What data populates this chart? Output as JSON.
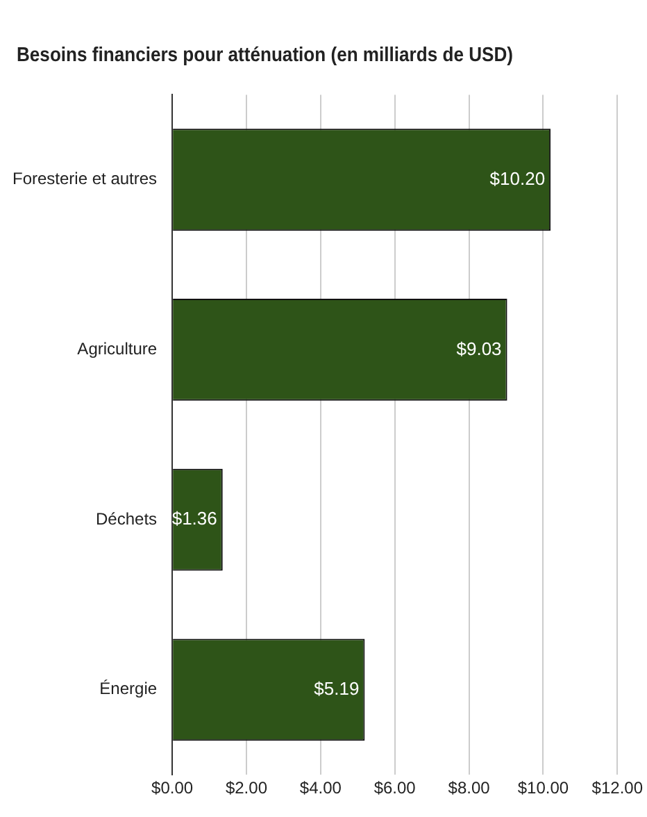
{
  "chart_data": {
    "type": "bar",
    "orientation": "horizontal",
    "title": "Besoins financiers pour atténuation (en milliards de USD)",
    "categories": [
      "Foresterie et autres",
      "Agriculture",
      "Déchets",
      "Énergie"
    ],
    "values": [
      10.2,
      9.03,
      1.36,
      5.19
    ],
    "value_labels": [
      "$10.20",
      "$9.03",
      "$1.36",
      "$5.19"
    ],
    "color": "#2e5418",
    "xlim": [
      0,
      12
    ],
    "xticks": [
      {
        "value": 0,
        "label": "$0.00"
      },
      {
        "value": 2,
        "label": "$2.00"
      },
      {
        "value": 4,
        "label": "$4.00"
      },
      {
        "value": 6,
        "label": "$6.00"
      },
      {
        "value": 8,
        "label": "$8.00"
      },
      {
        "value": 10,
        "label": "$10.00"
      },
      {
        "value": 12,
        "label": "$12.00"
      }
    ],
    "grid": "x",
    "legend": false
  }
}
